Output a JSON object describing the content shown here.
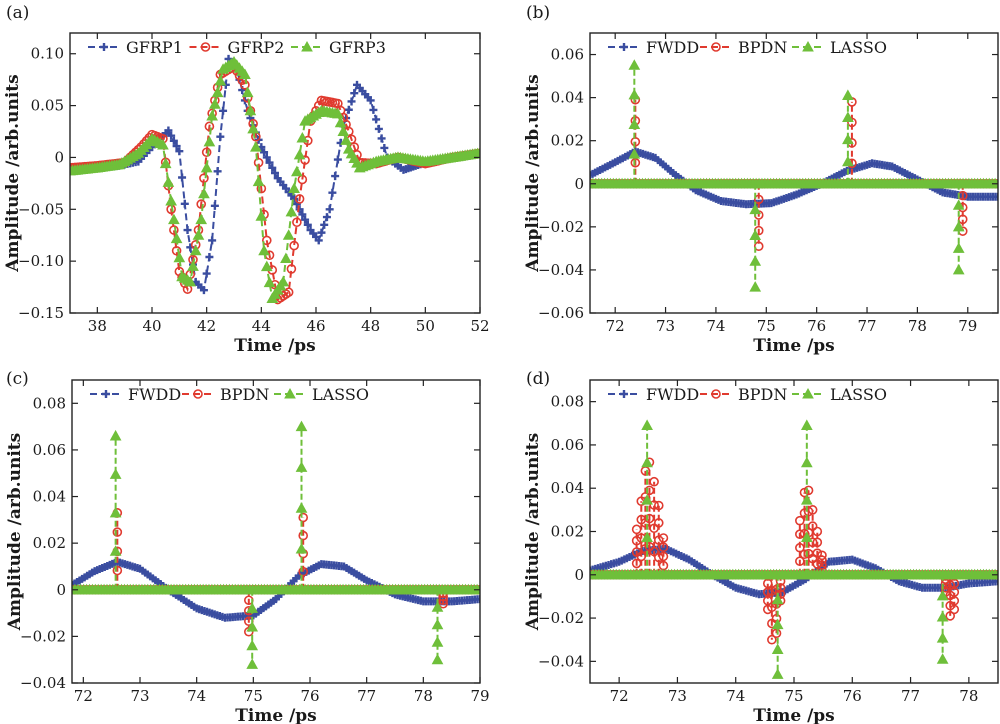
{
  "colors": {
    "series1": "#3a4da0",
    "series2": "#e03a2f",
    "series3": "#6fbf3a"
  },
  "chart_data": [
    {
      "type": "line",
      "panel_label": "(a)",
      "xlabel": "Time /ps",
      "ylabel": "Amplitude /arb.units",
      "xlim": [
        37,
        52
      ],
      "ylim": [
        -0.15,
        0.12
      ],
      "xticks": [
        38,
        40,
        42,
        44,
        46,
        48,
        50,
        52
      ],
      "xtick_labels": [
        "38",
        "40",
        "42",
        "44",
        "46",
        "48",
        "50",
        "52"
      ],
      "yticks": [
        -0.15,
        -0.1,
        -0.05,
        0,
        0.05,
        0.1
      ],
      "ytick_labels": [
        "−0.15",
        "−0.10",
        "−0.05",
        "0",
        "0.05",
        "0.10"
      ],
      "legend_position": "top",
      "series": [
        {
          "name": "GFRP1",
          "color": "#3a4da0",
          "marker": "plus",
          "points": [
            [
              37,
              -0.01
            ],
            [
              38,
              -0.01
            ],
            [
              38.8,
              -0.008
            ],
            [
              39.5,
              -0.004
            ],
            [
              40,
              0.01
            ],
            [
              40.6,
              0.026
            ],
            [
              41,
              0.006
            ],
            [
              41.3,
              -0.07
            ],
            [
              41.6,
              -0.12
            ],
            [
              41.9,
              -0.128
            ],
            [
              42.2,
              -0.08
            ],
            [
              42.5,
              0.02
            ],
            [
              42.8,
              0.095
            ],
            [
              43.1,
              0.085
            ],
            [
              43.5,
              0.045
            ],
            [
              44,
              0.01
            ],
            [
              44.6,
              -0.02
            ],
            [
              45.2,
              -0.04
            ],
            [
              45.8,
              -0.07
            ],
            [
              46.1,
              -0.08
            ],
            [
              46.5,
              -0.05
            ],
            [
              47,
              0.03
            ],
            [
              47.5,
              0.07
            ],
            [
              48,
              0.055
            ],
            [
              48.6,
              0.0
            ],
            [
              49.2,
              -0.012
            ],
            [
              50,
              -0.005
            ],
            [
              51,
              0.0
            ],
            [
              52,
              0.004
            ]
          ]
        },
        {
          "name": "GFRP2",
          "color": "#e03a2f",
          "marker": "circle",
          "points": [
            [
              37,
              -0.01
            ],
            [
              38,
              -0.008
            ],
            [
              39,
              -0.005
            ],
            [
              39.6,
              0.01
            ],
            [
              40,
              0.022
            ],
            [
              40.4,
              0.018
            ],
            [
              40.7,
              -0.05
            ],
            [
              41,
              -0.11
            ],
            [
              41.3,
              -0.127
            ],
            [
              41.7,
              -0.07
            ],
            [
              42.1,
              0.03
            ],
            [
              42.5,
              0.08
            ],
            [
              43,
              0.088
            ],
            [
              43.4,
              0.07
            ],
            [
              43.8,
              0.02
            ],
            [
              44.2,
              -0.08
            ],
            [
              44.6,
              -0.137
            ],
            [
              45,
              -0.13
            ],
            [
              45.4,
              -0.04
            ],
            [
              45.8,
              0.035
            ],
            [
              46.2,
              0.055
            ],
            [
              46.8,
              0.052
            ],
            [
              47.2,
              0.025
            ],
            [
              47.6,
              -0.005
            ],
            [
              48.2,
              -0.006
            ],
            [
              49,
              0.0
            ],
            [
              50,
              -0.006
            ],
            [
              51,
              0.0
            ],
            [
              52,
              0.004
            ]
          ]
        },
        {
          "name": "GFRP3",
          "color": "#6fbf3a",
          "marker": "triangle",
          "points": [
            [
              37,
              -0.013
            ],
            [
              38,
              -0.01
            ],
            [
              38.8,
              -0.007
            ],
            [
              39.5,
              0.004
            ],
            [
              40,
              0.018
            ],
            [
              40.4,
              0.012
            ],
            [
              40.8,
              -0.06
            ],
            [
              41.1,
              -0.115
            ],
            [
              41.4,
              -0.12
            ],
            [
              41.8,
              -0.06
            ],
            [
              42.2,
              0.04
            ],
            [
              42.6,
              0.085
            ],
            [
              43,
              0.092
            ],
            [
              43.4,
              0.08
            ],
            [
              43.8,
              0.01
            ],
            [
              44.1,
              -0.09
            ],
            [
              44.4,
              -0.136
            ],
            [
              44.8,
              -0.12
            ],
            [
              45.2,
              -0.03
            ],
            [
              45.6,
              0.035
            ],
            [
              46.2,
              0.045
            ],
            [
              46.8,
              0.042
            ],
            [
              47.2,
              0.008
            ],
            [
              47.6,
              -0.01
            ],
            [
              48.2,
              -0.004
            ],
            [
              49,
              0.0
            ],
            [
              50,
              -0.004
            ],
            [
              51,
              0.0
            ],
            [
              52,
              0.004
            ]
          ]
        }
      ]
    },
    {
      "type": "line",
      "panel_label": "(b)",
      "xlabel": "Time /ps",
      "ylabel": "Amplitude /arb.units",
      "xlim": [
        71.5,
        79.6
      ],
      "ylim": [
        -0.06,
        0.07
      ],
      "xticks": [
        72,
        73,
        74,
        75,
        76,
        77,
        78,
        79
      ],
      "xtick_labels": [
        "72",
        "73",
        "74",
        "75",
        "76",
        "77",
        "78",
        "79"
      ],
      "yticks": [
        -0.06,
        -0.04,
        -0.02,
        0,
        0.02,
        0.04,
        0.06
      ],
      "ytick_labels": [
        "−0.06",
        "−0.04",
        "−0.02",
        "0",
        "0.02",
        "0.04",
        "0.06"
      ],
      "legend_position": "top",
      "series": [
        {
          "name": "FWDD",
          "color": "#3a4da0",
          "marker": "plus",
          "points": [
            [
              71.5,
              0.004
            ],
            [
              72,
              0.01
            ],
            [
              72.4,
              0.015
            ],
            [
              72.8,
              0.012
            ],
            [
              73.2,
              0.004
            ],
            [
              73.6,
              -0.003
            ],
            [
              74.1,
              -0.008
            ],
            [
              74.6,
              -0.0095
            ],
            [
              75.1,
              -0.009
            ],
            [
              75.6,
              -0.005
            ],
            [
              76.1,
              0.0
            ],
            [
              76.6,
              0.006
            ],
            [
              77.1,
              0.0095
            ],
            [
              77.5,
              0.008
            ],
            [
              78,
              0.002
            ],
            [
              78.5,
              -0.004
            ],
            [
              79,
              -0.006
            ],
            [
              79.6,
              -0.006
            ]
          ]
        },
        {
          "name": "BPDN",
          "color": "#e03a2f",
          "marker": "circle",
          "spikes": [
            {
              "x": 72.4,
              "y": 0.039
            },
            {
              "x": 74.85,
              "y": -0.029
            },
            {
              "x": 76.7,
              "y": 0.038
            },
            {
              "x": 78.9,
              "y": -0.022
            }
          ]
        },
        {
          "name": "LASSO",
          "color": "#6fbf3a",
          "marker": "triangle",
          "spikes": [
            {
              "x": 72.38,
              "y": 0.055
            },
            {
              "x": 74.78,
              "y": -0.048
            },
            {
              "x": 76.62,
              "y": 0.041
            },
            {
              "x": 78.82,
              "y": -0.04
            }
          ]
        }
      ]
    },
    {
      "type": "line",
      "panel_label": "(c)",
      "xlabel": "Time /ps",
      "ylabel": "Amplitude /arb.units",
      "xlim": [
        71.8,
        79.0
      ],
      "ylim": [
        -0.04,
        0.09
      ],
      "xticks": [
        72,
        73,
        74,
        75,
        76,
        77,
        78,
        79
      ],
      "xtick_labels": [
        "72",
        "73",
        "74",
        "75",
        "76",
        "77",
        "78",
        "79"
      ],
      "yticks": [
        -0.04,
        -0.02,
        0,
        0.02,
        0.04,
        0.06,
        0.08
      ],
      "ytick_labels": [
        "−0.04",
        "−0.02",
        "0",
        "0.02",
        "0.04",
        "0.06",
        "0.08"
      ],
      "legend_position": "top",
      "series": [
        {
          "name": "FWDD",
          "color": "#3a4da0",
          "marker": "plus",
          "points": [
            [
              71.8,
              0.002
            ],
            [
              72.2,
              0.008
            ],
            [
              72.6,
              0.012
            ],
            [
              73,
              0.009
            ],
            [
              73.5,
              0.0
            ],
            [
              74,
              -0.008
            ],
            [
              74.5,
              -0.012
            ],
            [
              75,
              -0.011
            ],
            [
              75.4,
              -0.004
            ],
            [
              75.8,
              0.006
            ],
            [
              76.2,
              0.011
            ],
            [
              76.6,
              0.01
            ],
            [
              77,
              0.004
            ],
            [
              77.5,
              -0.002
            ],
            [
              78,
              -0.005
            ],
            [
              78.5,
              -0.005
            ],
            [
              79,
              -0.004
            ]
          ]
        },
        {
          "name": "BPDN",
          "color": "#e03a2f",
          "marker": "circle",
          "spikes": [
            {
              "x": 72.6,
              "y": 0.033
            },
            {
              "x": 74.92,
              "y": -0.018
            },
            {
              "x": 75.88,
              "y": 0.031
            },
            {
              "x": 78.35,
              "y": -0.006
            }
          ]
        },
        {
          "name": "LASSO",
          "color": "#6fbf3a",
          "marker": "triangle",
          "spikes": [
            {
              "x": 72.57,
              "y": 0.066
            },
            {
              "x": 74.98,
              "y": -0.032
            },
            {
              "x": 75.85,
              "y": 0.07
            },
            {
              "x": 78.25,
              "y": -0.03
            }
          ]
        }
      ]
    },
    {
      "type": "line",
      "panel_label": "(d)",
      "xlabel": "Time /ps",
      "ylabel": "Amplitude /arb.units",
      "xlim": [
        71.5,
        78.5
      ],
      "ylim": [
        -0.05,
        0.09
      ],
      "xticks": [
        72,
        73,
        74,
        75,
        76,
        77,
        78
      ],
      "xtick_labels": [
        "72",
        "73",
        "74",
        "75",
        "76",
        "77",
        "78"
      ],
      "yticks": [
        -0.04,
        -0.02,
        0,
        0.02,
        0.04,
        0.06,
        0.08
      ],
      "ytick_labels": [
        "−0.04",
        "−0.02",
        "0",
        "0.02",
        "0.04",
        "0.06",
        "0.08"
      ],
      "legend_position": "top",
      "series": [
        {
          "name": "FWDD",
          "color": "#3a4da0",
          "marker": "plus",
          "points": [
            [
              71.5,
              0.002
            ],
            [
              72,
              0.006
            ],
            [
              72.4,
              0.011
            ],
            [
              72.8,
              0.012
            ],
            [
              73.2,
              0.007
            ],
            [
              73.6,
              0.0
            ],
            [
              74,
              -0.006
            ],
            [
              74.4,
              -0.009
            ],
            [
              74.8,
              -0.008
            ],
            [
              75.2,
              -0.002
            ],
            [
              75.6,
              0.006
            ],
            [
              76,
              0.007
            ],
            [
              76.4,
              0.003
            ],
            [
              76.8,
              -0.003
            ],
            [
              77.2,
              -0.006
            ],
            [
              77.6,
              -0.006
            ],
            [
              78,
              -0.004
            ],
            [
              78.5,
              -0.003
            ]
          ]
        },
        {
          "name": "BPDN",
          "color": "#e03a2f",
          "marker": "circle",
          "spikes": [
            {
              "x": 72.3,
              "y": 0.021
            },
            {
              "x": 72.38,
              "y": 0.034
            },
            {
              "x": 72.45,
              "y": 0.048
            },
            {
              "x": 72.52,
              "y": 0.052
            },
            {
              "x": 72.6,
              "y": 0.043
            },
            {
              "x": 72.68,
              "y": 0.032
            },
            {
              "x": 72.76,
              "y": 0.017
            },
            {
              "x": 74.55,
              "y": -0.016
            },
            {
              "x": 74.62,
              "y": -0.03
            },
            {
              "x": 74.7,
              "y": -0.027
            },
            {
              "x": 74.77,
              "y": -0.012
            },
            {
              "x": 75.1,
              "y": 0.025
            },
            {
              "x": 75.18,
              "y": 0.038
            },
            {
              "x": 75.25,
              "y": 0.039
            },
            {
              "x": 75.32,
              "y": 0.03
            },
            {
              "x": 75.4,
              "y": 0.02
            },
            {
              "x": 75.48,
              "y": 0.009
            },
            {
              "x": 77.6,
              "y": -0.008
            },
            {
              "x": 77.68,
              "y": -0.019
            },
            {
              "x": 77.75,
              "y": -0.016
            }
          ]
        },
        {
          "name": "LASSO",
          "color": "#6fbf3a",
          "marker": "triangle",
          "spikes": [
            {
              "x": 72.48,
              "y": 0.069
            },
            {
              "x": 74.72,
              "y": -0.046
            },
            {
              "x": 75.22,
              "y": 0.069
            },
            {
              "x": 77.55,
              "y": -0.039
            }
          ]
        }
      ]
    }
  ]
}
